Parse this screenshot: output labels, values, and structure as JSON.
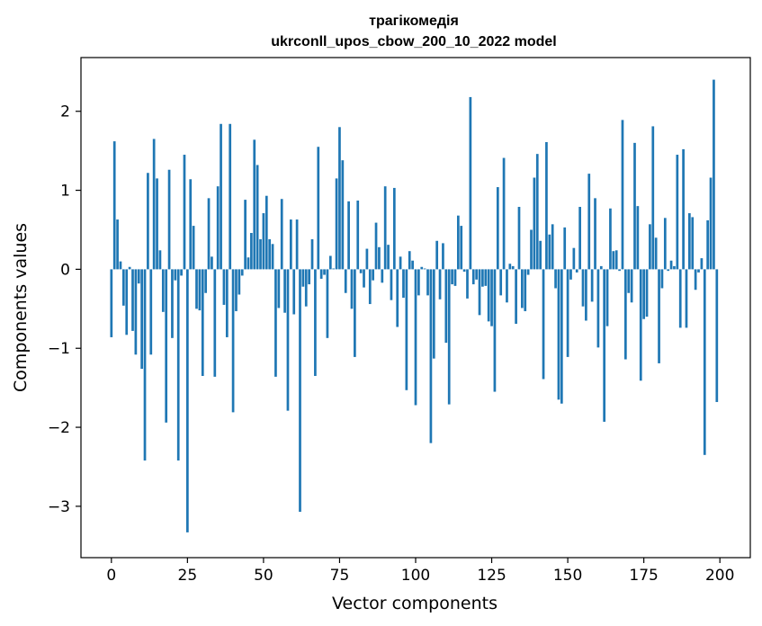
{
  "chart_data": {
    "type": "bar",
    "title": "трагікомедія",
    "subtitle": "ukrconll_upos_cbow_200_10_2022 model",
    "xlabel": "Vector components",
    "ylabel": "Components values",
    "xlim": [
      -10,
      210
    ],
    "ylim": [
      -3.65,
      2.68
    ],
    "xticks": [
      0,
      25,
      50,
      75,
      100,
      125,
      150,
      175,
      200
    ],
    "xtick_labels": [
      "0",
      "25",
      "50",
      "75",
      "100",
      "125",
      "150",
      "175",
      "200"
    ],
    "yticks": [
      -3,
      -2,
      -1,
      0,
      1,
      2
    ],
    "ytick_labels": [
      "−3",
      "−2",
      "−1",
      "0",
      "1",
      "2"
    ],
    "grid": false,
    "bar_color": "#1f77b4",
    "x": [
      0,
      1,
      2,
      3,
      4,
      5,
      6,
      7,
      8,
      9,
      10,
      11,
      12,
      13,
      14,
      15,
      16,
      17,
      18,
      19,
      20,
      21,
      22,
      23,
      24,
      25,
      26,
      27,
      28,
      29,
      30,
      31,
      32,
      33,
      34,
      35,
      36,
      37,
      38,
      39,
      40,
      41,
      42,
      43,
      44,
      45,
      46,
      47,
      48,
      49,
      50,
      51,
      52,
      53,
      54,
      55,
      56,
      57,
      58,
      59,
      60,
      61,
      62,
      63,
      64,
      65,
      66,
      67,
      68,
      69,
      70,
      71,
      72,
      73,
      74,
      75,
      76,
      77,
      78,
      79,
      80,
      81,
      82,
      83,
      84,
      85,
      86,
      87,
      88,
      89,
      90,
      91,
      92,
      93,
      94,
      95,
      96,
      97,
      98,
      99,
      100,
      101,
      102,
      103,
      104,
      105,
      106,
      107,
      108,
      109,
      110,
      111,
      112,
      113,
      114,
      115,
      116,
      117,
      118,
      119,
      120,
      121,
      122,
      123,
      124,
      125,
      126,
      127,
      128,
      129,
      130,
      131,
      132,
      133,
      134,
      135,
      136,
      137,
      138,
      139,
      140,
      141,
      142,
      143,
      144,
      145,
      146,
      147,
      148,
      149,
      150,
      151,
      152,
      153,
      154,
      155,
      156,
      157,
      158,
      159,
      160,
      161,
      162,
      163,
      164,
      165,
      166,
      167,
      168,
      169,
      170,
      171,
      172,
      173,
      174,
      175,
      176,
      177,
      178,
      179,
      180,
      181,
      182,
      183,
      184,
      185,
      186,
      187,
      188,
      189,
      190,
      191,
      192,
      193,
      194,
      195,
      196,
      197,
      198,
      199
    ],
    "values": [
      -0.86,
      1.62,
      0.63,
      0.1,
      -0.46,
      -0.83,
      0.03,
      -0.78,
      -1.08,
      -0.18,
      -1.26,
      -2.42,
      1.22,
      -1.08,
      1.65,
      1.15,
      0.24,
      -0.54,
      -1.94,
      1.26,
      -0.87,
      -0.14,
      -2.42,
      -0.08,
      1.45,
      -3.33,
      1.14,
      0.55,
      -0.5,
      -0.52,
      -1.35,
      -0.3,
      0.9,
      0.16,
      -1.36,
      1.05,
      1.84,
      -0.45,
      -0.86,
      1.84,
      -1.81,
      -0.53,
      -0.32,
      -0.08,
      0.88,
      0.15,
      0.46,
      1.64,
      1.32,
      0.38,
      0.71,
      0.93,
      0.38,
      0.32,
      -1.36,
      -0.49,
      0.89,
      -0.55,
      -1.79,
      0.63,
      -0.57,
      0.63,
      -3.07,
      -0.22,
      -0.47,
      -0.19,
      0.38,
      -1.35,
      1.55,
      -0.12,
      -0.07,
      -0.87,
      0.17,
      0.01,
      1.15,
      1.8,
      1.38,
      -0.3,
      0.86,
      -0.5,
      -1.11,
      0.87,
      -0.05,
      -0.23,
      0.26,
      -0.44,
      -0.14,
      0.59,
      0.28,
      -0.17,
      1.05,
      0.31,
      -0.39,
      1.03,
      -0.73,
      0.16,
      -0.36,
      -1.53,
      0.23,
      0.11,
      -1.72,
      -0.33,
      0.03,
      0.01,
      -0.33,
      -2.2,
      -1.13,
      0.36,
      -0.38,
      0.33,
      -0.93,
      -1.71,
      -0.19,
      -0.21,
      0.68,
      0.55,
      -0.03,
      -0.37,
      2.18,
      -0.19,
      -0.13,
      -0.58,
      -0.22,
      -0.21,
      -0.66,
      -0.72,
      -1.55,
      1.04,
      -0.33,
      1.41,
      -0.42,
      0.07,
      0.04,
      -0.69,
      0.79,
      -0.49,
      -0.53,
      -0.07,
      0.5,
      1.16,
      1.46,
      0.36,
      -1.39,
      1.61,
      0.44,
      0.57,
      -0.24,
      -1.65,
      -1.7,
      0.53,
      -1.11,
      -0.13,
      0.27,
      -0.04,
      0.79,
      -0.47,
      -0.65,
      1.21,
      -0.41,
      0.9,
      -0.99,
      0.04,
      -1.93,
      -0.72,
      0.77,
      0.23,
      0.24,
      -0.02,
      1.89,
      -1.14,
      -0.3,
      -0.42,
      1.6,
      0.8,
      -1.41,
      -0.63,
      -0.6,
      0.57,
      1.81,
      0.4,
      -1.19,
      -0.24,
      0.65,
      -0.02,
      0.11,
      0.04,
      1.45,
      -0.74,
      1.52,
      -0.74,
      0.71,
      0.66,
      -0.26,
      -0.04,
      0.14,
      -2.35,
      0.62,
      1.16,
      2.4,
      -1.68
    ]
  }
}
